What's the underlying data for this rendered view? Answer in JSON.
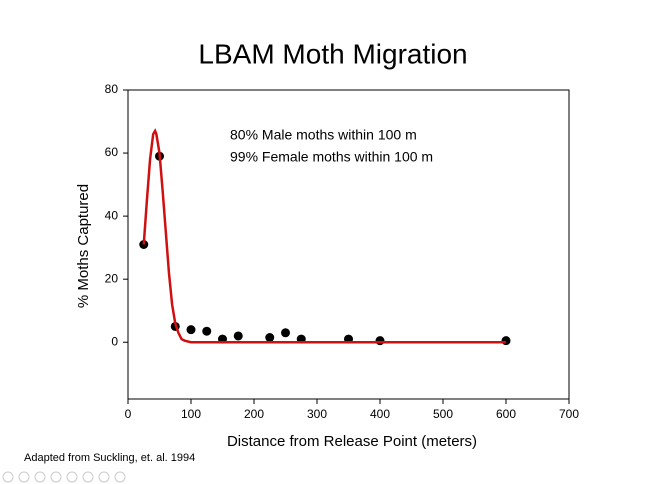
{
  "chart_data": {
    "type": "scatter",
    "title": "LBAM Moth Migration",
    "x_label": "Distance from Release Point (meters)",
    "y_label": "% Moths Captured",
    "annotations": [
      "80% Male moths within 100 m",
      "99% Female moths within 100 m"
    ],
    "annotation_color": "#b03a3a",
    "source": "Adapted from Suckling, et. al. 1994",
    "source_color": "#7a8a3a",
    "xlim": [
      0,
      700
    ],
    "xticks": [
      0,
      100,
      200,
      300,
      400,
      500,
      600,
      700
    ],
    "ylim": [
      -18,
      80
    ],
    "yticks": [
      0,
      20,
      40,
      60,
      80
    ],
    "series": [
      {
        "color": "#000000",
        "line": false,
        "x": [
          25,
          50,
          75,
          100,
          125,
          150,
          175,
          225,
          250,
          275,
          350,
          400,
          600
        ],
        "values": [
          31,
          59,
          5,
          4,
          3.5,
          1,
          2,
          1.5,
          3,
          1,
          1,
          0.5,
          0.5
        ]
      },
      {
        "color": "#d01010",
        "line": true,
        "x": [
          25,
          30,
          35,
          40,
          43,
          45,
          50,
          55,
          60,
          65,
          70,
          75,
          80,
          85,
          90,
          100,
          150,
          200,
          300,
          400,
          500,
          600
        ],
        "values": [
          31,
          45,
          58,
          66,
          67,
          66,
          60,
          48,
          35,
          22,
          12,
          6,
          3,
          1,
          0.5,
          0,
          0,
          0,
          0,
          0,
          0,
          0
        ]
      }
    ]
  }
}
